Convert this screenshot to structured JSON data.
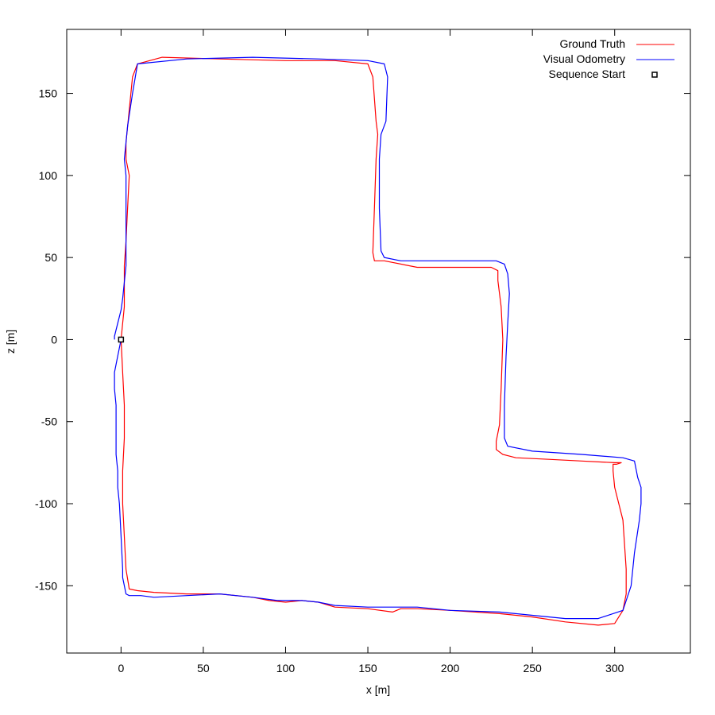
{
  "chart_data": {
    "type": "line",
    "title": "",
    "xlabel": "x [m]",
    "ylabel": "z [m]",
    "xlim": [
      -33,
      346
    ],
    "ylim": [
      -191,
      189
    ],
    "grid": false,
    "legend_position": "top-right",
    "xticks": [
      0,
      50,
      100,
      150,
      200,
      250,
      300
    ],
    "yticks": [
      -150,
      -100,
      -50,
      0,
      50,
      100,
      150
    ],
    "xtick_labels": [
      "0",
      "50",
      "100",
      "150",
      "200",
      "250",
      "300"
    ],
    "ytick_labels": [
      "-150",
      "-100",
      "-50",
      "0",
      "50",
      "100",
      "150"
    ],
    "series": [
      {
        "name": "Ground Truth",
        "color": "#ff0000",
        "x": [
          0,
          1,
          2,
          2,
          2,
          1,
          1,
          3,
          5,
          10,
          20,
          40,
          60,
          80,
          90,
          100,
          110,
          120,
          130,
          150,
          165,
          170,
          180,
          200,
          230,
          250,
          270,
          290,
          300,
          305,
          307,
          307,
          305,
          300,
          299,
          299,
          301,
          304,
          300,
          280,
          260,
          240,
          232,
          228,
          228,
          230,
          231,
          232,
          231,
          229,
          229,
          225,
          210,
          200,
          180,
          160,
          154,
          153,
          154,
          155,
          156,
          155,
          153,
          150,
          130,
          100,
          60,
          25,
          10,
          7,
          5,
          3,
          3,
          5,
          4,
          3,
          2,
          2,
          2,
          1,
          0
        ],
        "y": [
          0,
          -20,
          -40,
          -50,
          -60,
          -80,
          -100,
          -140,
          -152,
          -153,
          -154,
          -155,
          -155,
          -157,
          -159,
          -160,
          -159,
          -160,
          -163,
          -164,
          -166,
          -164,
          -164,
          -165,
          -167,
          -169,
          -172,
          -174,
          -173,
          -165,
          -155,
          -140,
          -110,
          -90,
          -80,
          -76,
          -76,
          -75,
          -75,
          -74,
          -73,
          -72,
          -70,
          -67,
          -62,
          -52,
          -30,
          0,
          20,
          36,
          42,
          44,
          44,
          44,
          44,
          48,
          48,
          53,
          80,
          110,
          125,
          133,
          160,
          168,
          170,
          170,
          171,
          172,
          168,
          160,
          140,
          120,
          110,
          100,
          80,
          60,
          45,
          30,
          20,
          10,
          0
        ]
      },
      {
        "name": "Visual Odometry",
        "color": "#0000ff",
        "x": [
          0,
          -2,
          -4,
          -4,
          -3,
          -3,
          -3,
          -2,
          -2,
          -1,
          0,
          1,
          1,
          2,
          3,
          5,
          12,
          20,
          40,
          60,
          80,
          95,
          110,
          120,
          130,
          150,
          170,
          180,
          200,
          230,
          250,
          270,
          290,
          305,
          310,
          312,
          315,
          316,
          316,
          314,
          312,
          305,
          280,
          250,
          235,
          233,
          233,
          234,
          235,
          236,
          235,
          233,
          228,
          210,
          190,
          170,
          160,
          158,
          157,
          157,
          158,
          161,
          162,
          160,
          150,
          120,
          80,
          40,
          10,
          7,
          4,
          2,
          3,
          3,
          3,
          2,
          1,
          0,
          -2,
          -4,
          -4
        ],
        "y": [
          0,
          -10,
          -20,
          -30,
          -40,
          -60,
          -70,
          -80,
          -90,
          -100,
          -120,
          -140,
          -145,
          -150,
          -155,
          -156,
          -156,
          -157,
          -156,
          -155,
          -157,
          -159,
          -159,
          -160,
          -162,
          -163,
          -163,
          -163,
          -165,
          -166,
          -168,
          -170,
          -170,
          -165,
          -150,
          -130,
          -110,
          -100,
          -90,
          -84,
          -74,
          -72,
          -70,
          -68,
          -65,
          -60,
          -40,
          -10,
          10,
          28,
          40,
          46,
          48,
          48,
          48,
          48,
          50,
          54,
          80,
          110,
          125,
          133,
          160,
          168,
          170,
          171,
          172,
          171,
          168,
          150,
          130,
          110,
          100,
          70,
          45,
          35,
          25,
          18,
          10,
          2,
          0
        ]
      }
    ],
    "markers": [
      {
        "name": "Sequence Start",
        "x": 0,
        "y": 0,
        "shape": "square"
      }
    ]
  }
}
